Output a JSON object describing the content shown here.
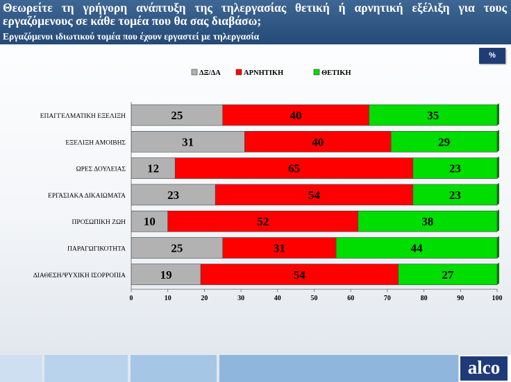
{
  "header": {
    "title": "Θεωρείτε τη γρήγορη ανάπτυξη της τηλεργασίας θετική ή αρνητική εξέλιξη για τους εργαζόμενους σε κάθε τομέα που θα σας διαβάσω;",
    "subtitle": "Εργαζόμενοι ιδιωτικού τομέα που έχουν εργαστεί με τηλεργασία"
  },
  "unit_badge": "%",
  "logo_text": "alco",
  "colors": {
    "header_bg": "#2d5585",
    "series": [
      "#b2b2b2",
      "#ff0000",
      "#00dd00"
    ],
    "logo_bg": "#1e3a78"
  },
  "chart_data": {
    "type": "bar",
    "orientation": "horizontal",
    "stacked": true,
    "categories": [
      "ΕΠΑΓΓΕΛΜΑΤΙΚΗ ΕΞΕΛΙΞΗ",
      "ΕΞΕΛΙΞΗ ΑΜΟΙΒΗΣ",
      "ΩΡΕΣ ΔΟΥΛΕΙΑΣ",
      "ΕΡΓΑΣΙΑΚΑ ΔΙΚΑΙΩΜΑΤΑ",
      "ΠΡΟΣΩΠΙΚΗ ΖΩΗ",
      "ΠΑΡΑΓΩΓΙΚΟΤΗΤΑ",
      "ΔΙΑΘΕΣΗ/ΨΥΧΙΚΗ ΙΣΟΡΡΟΠΙΑ"
    ],
    "series": [
      {
        "name": "ΔΞ/ΔΑ",
        "values": [
          25,
          31,
          12,
          23,
          10,
          25,
          19
        ]
      },
      {
        "name": "ΑΡΝΗΤΙΚΗ",
        "values": [
          40,
          40,
          65,
          54,
          52,
          31,
          54
        ]
      },
      {
        "name": "ΘΕΤΙΚΗ",
        "values": [
          35,
          29,
          23,
          23,
          38,
          44,
          27
        ]
      }
    ],
    "xlim": [
      0,
      100
    ],
    "xticks": [
      0,
      10,
      20,
      30,
      40,
      50,
      60,
      70,
      80,
      90,
      100
    ],
    "legend_position": "top",
    "data_labels": true,
    "grid": false
  }
}
